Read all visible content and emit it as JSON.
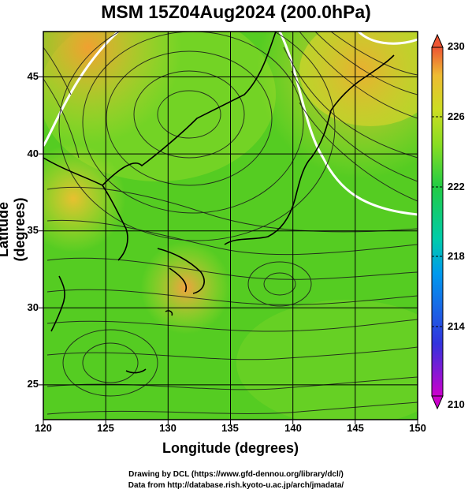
{
  "title": "MSM 15Z04Aug2024 (200.0hPa)",
  "x_axis": {
    "label": "Longitude (degrees)",
    "ticks": [
      "120",
      "125",
      "130",
      "135",
      "140",
      "145",
      "150"
    ],
    "range": [
      120,
      150
    ]
  },
  "y_axis": {
    "label": "Latitude  (degrees)",
    "ticks": [
      "25",
      "30",
      "35",
      "40",
      "45"
    ],
    "range": [
      22.4,
      47.6
    ]
  },
  "colorbar": {
    "ticks": [
      "230",
      "226",
      "222",
      "218",
      "214",
      "210"
    ],
    "range": [
      210,
      230
    ],
    "colors": [
      "#cc00cc",
      "#3333dd",
      "#0099ee",
      "#00ccaa",
      "#22cc44",
      "#88dd22",
      "#ccdd22",
      "#eebb33",
      "#ee5533"
    ]
  },
  "credits": {
    "line1": "Drawing by DCL (https://www.gfd-dennou.org/library/dcl/)",
    "line2": "Data from http://database.rish.kyoto-u.ac.jp/arch/jmadata/"
  }
}
